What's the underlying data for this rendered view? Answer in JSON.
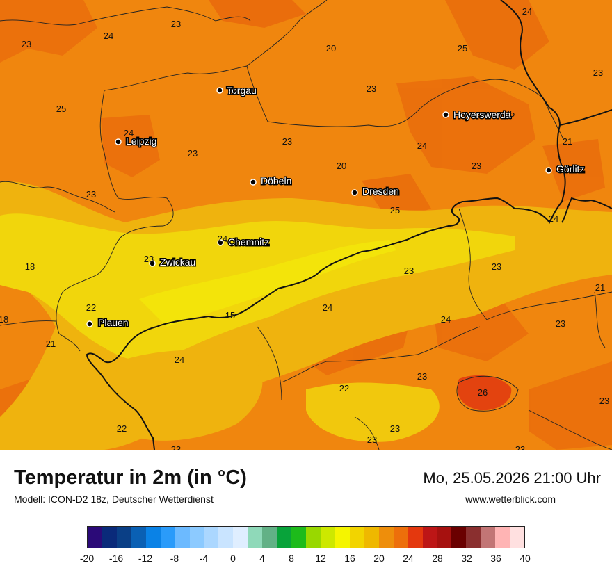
{
  "map": {
    "cities": [
      {
        "name": "Torgau"
      },
      {
        "name": "Leipzig"
      },
      {
        "name": "Hoyerswerda"
      },
      {
        "name": "Görlitz"
      },
      {
        "name": "Döbeln"
      },
      {
        "name": "Dresden"
      },
      {
        "name": "Chemnitz"
      },
      {
        "name": "Zwickau"
      },
      {
        "name": "Plauen"
      }
    ],
    "values": [
      "23",
      "24",
      "23",
      "20",
      "25",
      "24",
      "23",
      "25",
      "23",
      "25",
      "24",
      "23",
      "24",
      "23",
      "20",
      "23",
      "21",
      "24",
      "23",
      "23",
      "25",
      "24",
      "23",
      "18",
      "23",
      "23",
      "21",
      "22",
      "15",
      "24",
      "24",
      "23",
      "18",
      "21",
      "24",
      "22",
      "23",
      "26",
      "23",
      "22",
      "23",
      "23",
      "23",
      "23"
    ]
  },
  "footer": {
    "title": "Temperatur in 2m (in °C)",
    "model": "Modell: ICON-D2 18z, Deutscher Wetterdienst",
    "datetime": "Mo, 25.05.2026 21:00 Uhr",
    "website": "www.wetterblick.com"
  },
  "legend": {
    "colors": [
      "#2b0a78",
      "#0a2a7a",
      "#0a3f86",
      "#0a60b4",
      "#0a82e6",
      "#2a9bfa",
      "#6cbaff",
      "#8ccaff",
      "#abd7ff",
      "#c9e4ff",
      "#dfeeff",
      "#8fd9b9",
      "#62b186",
      "#08a33a",
      "#1dbb1b",
      "#99d800",
      "#cde800",
      "#f5f500",
      "#f2d400",
      "#efb800",
      "#ee8e0b",
      "#ed6f0b",
      "#e4380e",
      "#bd1616",
      "#a6110f",
      "#6a0000",
      "#8a2f2f",
      "#c27575",
      "#ffb4b4",
      "#ffe0e0"
    ],
    "tick_labels": [
      "-20",
      "-16",
      "-12",
      "-8",
      "-4",
      "0",
      "4",
      "8",
      "12",
      "16",
      "20",
      "24",
      "28",
      "32",
      "36",
      "40"
    ]
  },
  "colors": {
    "base_orange": "#f0860e",
    "warm_orange": "#ee6e0b",
    "mid_yellow": "#f0bb0e",
    "yellow": "#f1d90c",
    "red_spot": "#e24010"
  }
}
